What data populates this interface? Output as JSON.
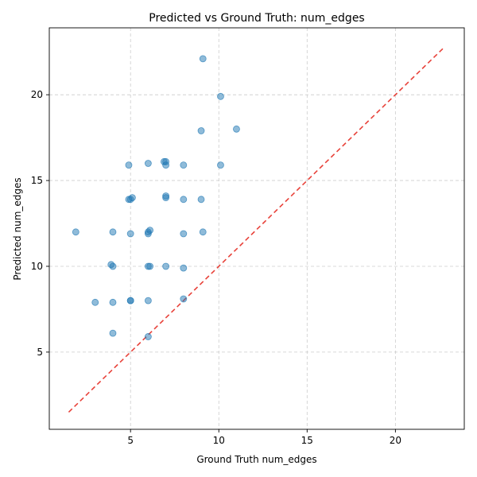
{
  "chart_data": {
    "type": "scatter",
    "title": "Predicted vs Ground Truth: num_edges",
    "xlabel": "Ground Truth num_edges",
    "ylabel": "Predicted num_edges",
    "xlim": [
      0.4,
      23.9
    ],
    "ylim": [
      0.5,
      23.9
    ],
    "xticks": [
      5,
      10,
      15,
      20
    ],
    "yticks": [
      5,
      10,
      15,
      20
    ],
    "grid": true,
    "point_color": "#1f77b4",
    "reference_line": {
      "style": "dashed",
      "color": "#e8423a",
      "from": [
        1.5,
        1.5
      ],
      "to": [
        22.8,
        22.8
      ]
    },
    "points": [
      {
        "x": 9.1,
        "y": 22.1
      },
      {
        "x": 10.1,
        "y": 19.9
      },
      {
        "x": 9.0,
        "y": 17.9
      },
      {
        "x": 11.0,
        "y": 18.0
      },
      {
        "x": 6.9,
        "y": 16.1
      },
      {
        "x": 7.0,
        "y": 16.1
      },
      {
        "x": 7.0,
        "y": 15.9
      },
      {
        "x": 6.0,
        "y": 16.0
      },
      {
        "x": 4.9,
        "y": 15.9
      },
      {
        "x": 8.0,
        "y": 15.9
      },
      {
        "x": 10.1,
        "y": 15.9
      },
      {
        "x": 5.1,
        "y": 14.0
      },
      {
        "x": 4.9,
        "y": 13.9
      },
      {
        "x": 5.0,
        "y": 13.9
      },
      {
        "x": 7.0,
        "y": 14.0
      },
      {
        "x": 7.0,
        "y": 14.1
      },
      {
        "x": 8.0,
        "y": 13.9
      },
      {
        "x": 9.0,
        "y": 13.9
      },
      {
        "x": 1.9,
        "y": 12.0
      },
      {
        "x": 4.0,
        "y": 12.0
      },
      {
        "x": 5.0,
        "y": 11.9
      },
      {
        "x": 6.0,
        "y": 12.0
      },
      {
        "x": 6.1,
        "y": 12.1
      },
      {
        "x": 6.0,
        "y": 11.9
      },
      {
        "x": 8.0,
        "y": 11.9
      },
      {
        "x": 9.1,
        "y": 12.0
      },
      {
        "x": 3.9,
        "y": 10.1
      },
      {
        "x": 4.0,
        "y": 10.0
      },
      {
        "x": 6.0,
        "y": 10.0
      },
      {
        "x": 6.1,
        "y": 10.0
      },
      {
        "x": 7.0,
        "y": 10.0
      },
      {
        "x": 8.0,
        "y": 9.9
      },
      {
        "x": 3.0,
        "y": 7.9
      },
      {
        "x": 4.0,
        "y": 7.9
      },
      {
        "x": 5.0,
        "y": 8.0
      },
      {
        "x": 5.0,
        "y": 8.0
      },
      {
        "x": 6.0,
        "y": 8.0
      },
      {
        "x": 8.0,
        "y": 8.1
      },
      {
        "x": 4.0,
        "y": 6.1
      },
      {
        "x": 6.0,
        "y": 5.9
      }
    ]
  }
}
